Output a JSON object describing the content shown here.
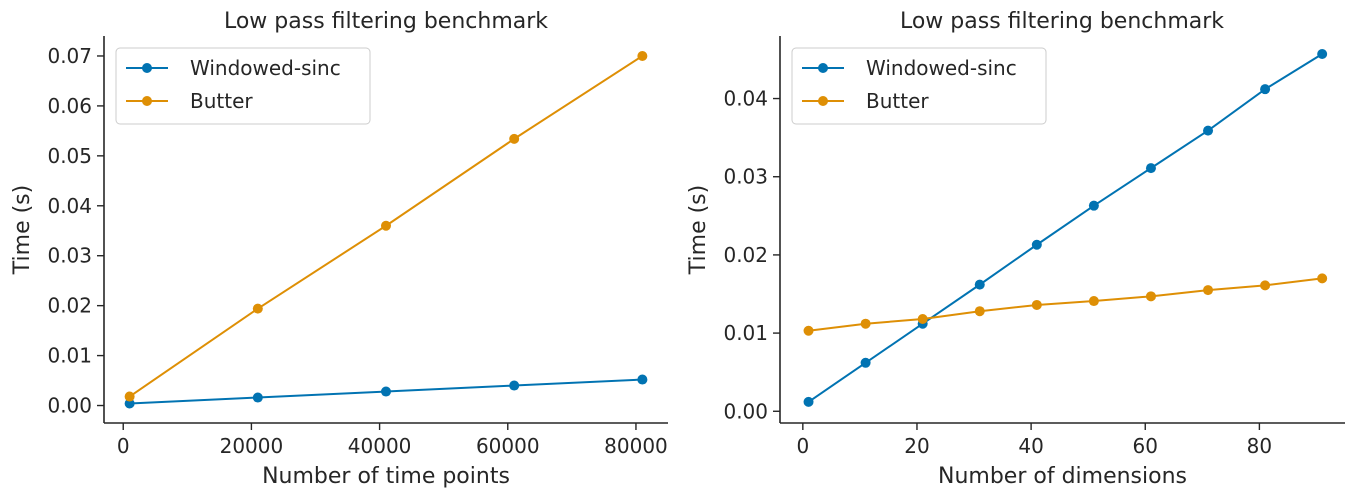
{
  "colors": {
    "windowed_sinc": "#0173b2",
    "butter": "#de8f05",
    "text": "#262626"
  },
  "chart_data": [
    {
      "type": "line",
      "title": "Low pass filtering benchmark",
      "xlabel": "Number of time points",
      "ylabel": "Time (s)",
      "x": [
        1000,
        21000,
        41000,
        61000,
        81000
      ],
      "xlim": [
        -3000,
        85000
      ],
      "ylim": [
        -0.0035,
        0.074
      ],
      "xticks": [
        0,
        20000,
        40000,
        60000,
        80000
      ],
      "xtick_labels": [
        "0",
        "20000",
        "40000",
        "60000",
        "80000"
      ],
      "yticks": [
        0,
        0.01,
        0.02,
        0.03,
        0.04,
        0.05,
        0.06,
        0.07
      ],
      "ytick_labels": [
        "0.00",
        "0.01",
        "0.02",
        "0.03",
        "0.04",
        "0.05",
        "0.06",
        "0.07"
      ],
      "grid": false,
      "legend": "top-left",
      "series": [
        {
          "name": "Windowed-sinc",
          "color": "#0173b2",
          "values": [
            0.0004,
            0.0016,
            0.0028,
            0.004,
            0.0052
          ]
        },
        {
          "name": "Butter",
          "color": "#de8f05",
          "values": [
            0.0018,
            0.0194,
            0.036,
            0.0534,
            0.07
          ]
        }
      ]
    },
    {
      "type": "line",
      "title": "Low pass filtering benchmark",
      "xlabel": "Number of dimensions",
      "ylabel": "Time (s)",
      "x": [
        1,
        11,
        21,
        31,
        41,
        51,
        61,
        71,
        81,
        91
      ],
      "xlim": [
        -4,
        95
      ],
      "ylim": [
        -0.0015,
        0.048
      ],
      "xticks": [
        0,
        20,
        40,
        60,
        80
      ],
      "xtick_labels": [
        "0",
        "20",
        "40",
        "60",
        "80"
      ],
      "yticks": [
        0,
        0.01,
        0.02,
        0.03,
        0.04
      ],
      "ytick_labels": [
        "0.00",
        "0.01",
        "0.02",
        "0.03",
        "0.04"
      ],
      "grid": false,
      "legend": "top-left",
      "series": [
        {
          "name": "Windowed-sinc",
          "color": "#0173b2",
          "values": [
            0.0012,
            0.0062,
            0.0112,
            0.0162,
            0.0213,
            0.0263,
            0.0311,
            0.0359,
            0.0412,
            0.0457
          ]
        },
        {
          "name": "Butter",
          "color": "#de8f05",
          "values": [
            0.0103,
            0.0112,
            0.0118,
            0.0128,
            0.0136,
            0.0141,
            0.0147,
            0.0155,
            0.0161,
            0.017
          ]
        }
      ]
    }
  ]
}
